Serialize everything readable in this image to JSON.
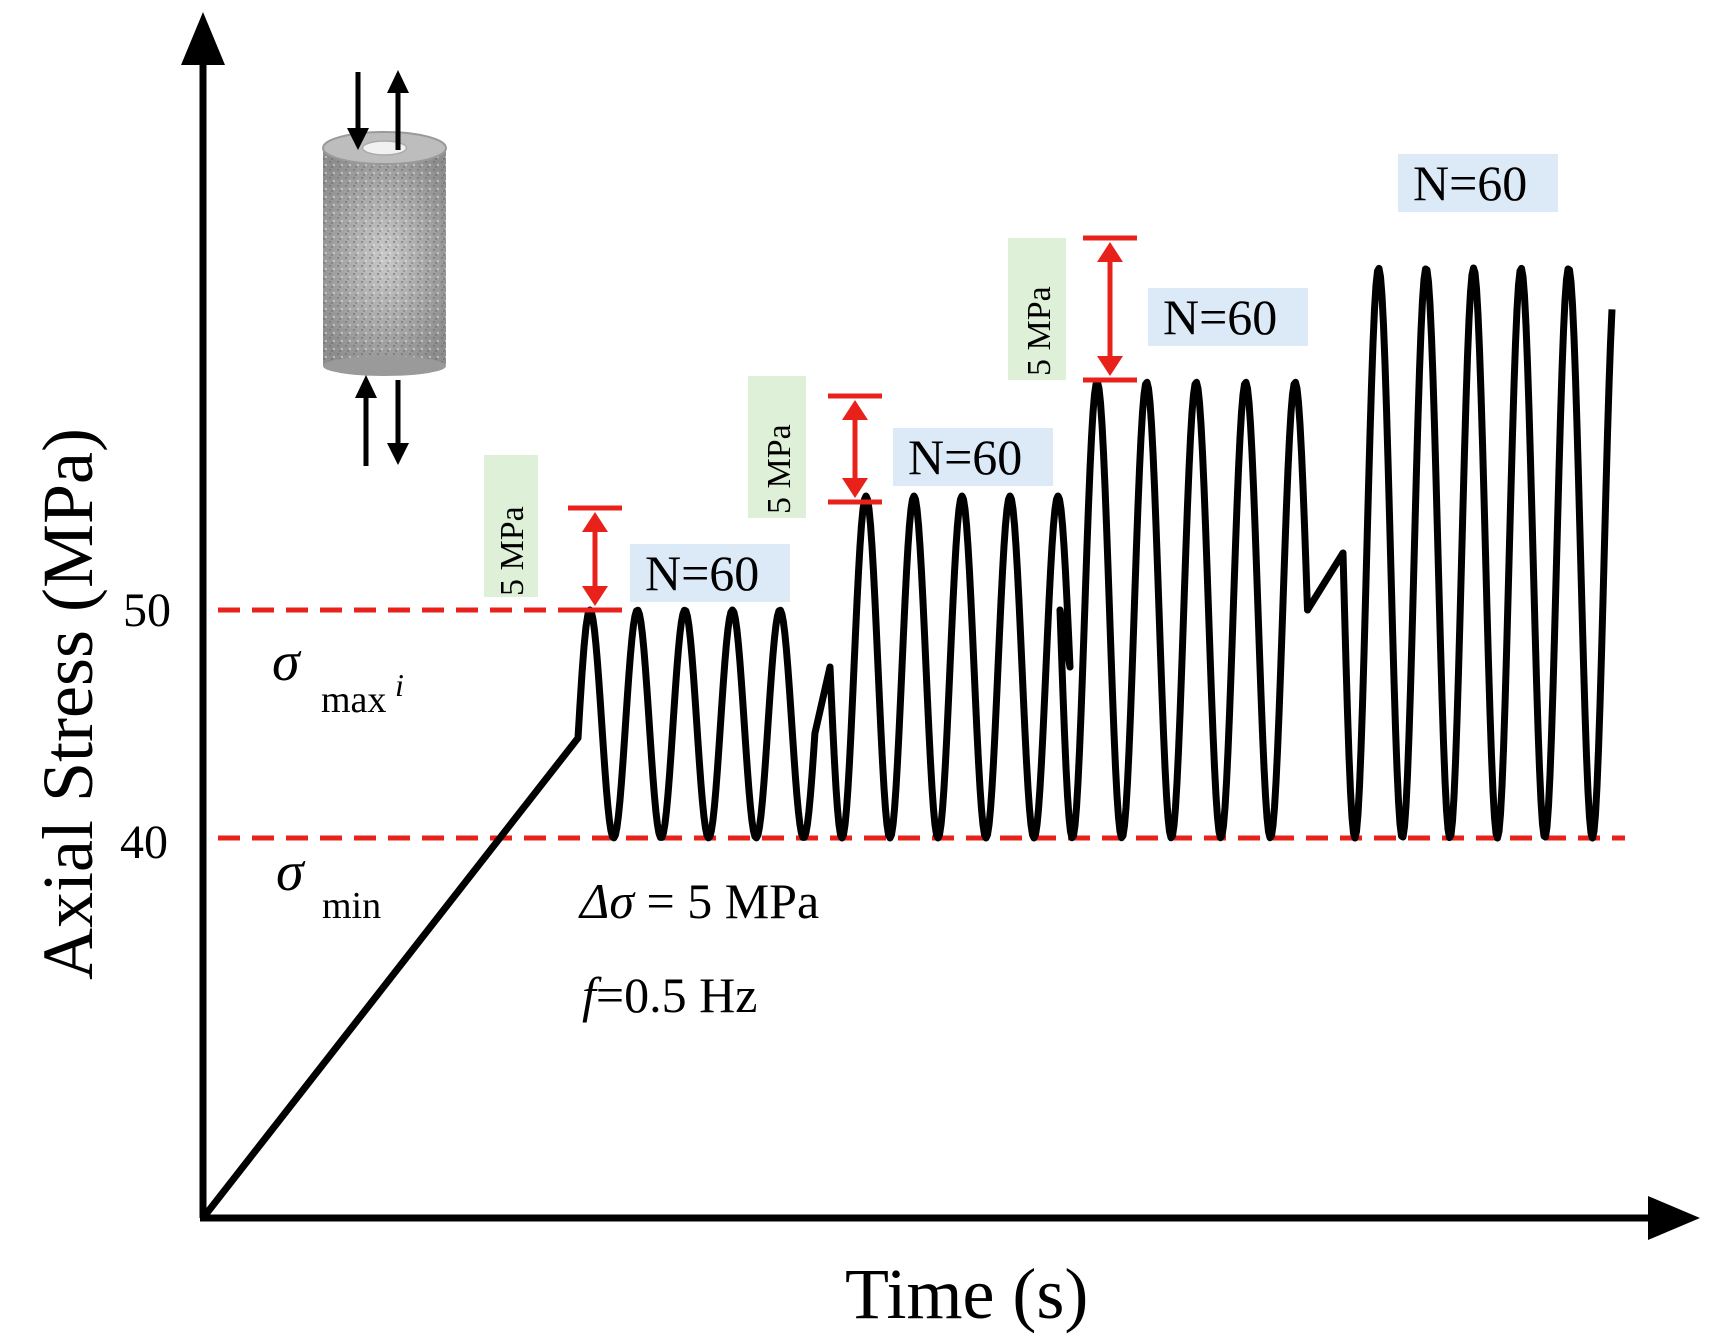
{
  "axes": {
    "ylabel": "Axial Stress (MPa)",
    "xlabel": "Time (s)",
    "y_ticks": [
      "50",
      "40"
    ]
  },
  "lines": {
    "sigma_max": {
      "symbol": "σ",
      "sub": "max",
      "sup": "i"
    },
    "sigma_min": {
      "symbol": "σ",
      "sub": "min"
    }
  },
  "annotations": {
    "delta_sigma": {
      "symbol": "Δσ",
      "rest": " = 5 MPa"
    },
    "frequency": {
      "symbol": "f",
      "rest": "=0.5 Hz"
    }
  },
  "stages": [
    {
      "n_label": "N=60",
      "step_label": "5 MPa"
    },
    {
      "n_label": "N=60",
      "step_label": "5 MPa"
    },
    {
      "n_label": "N=60",
      "step_label": "5 MPa"
    },
    {
      "n_label": "N=60"
    }
  ],
  "chart_data": {
    "type": "line",
    "title": "",
    "xlabel": "Time (s)",
    "ylabel": "Axial Stress (MPa)",
    "sigma_min": 40,
    "sigma_max_initial": 50,
    "stress_increment": 5,
    "delta_sigma": 5,
    "frequency_hz": 0.5,
    "cycles_per_stage": 60,
    "stage_peaks": [
      50,
      55,
      60,
      65
    ]
  },
  "colors": {
    "curve": "#000000",
    "reference_line": "#e8221b",
    "n_box": "#dce9f7",
    "step_box": "#dff0d8"
  }
}
